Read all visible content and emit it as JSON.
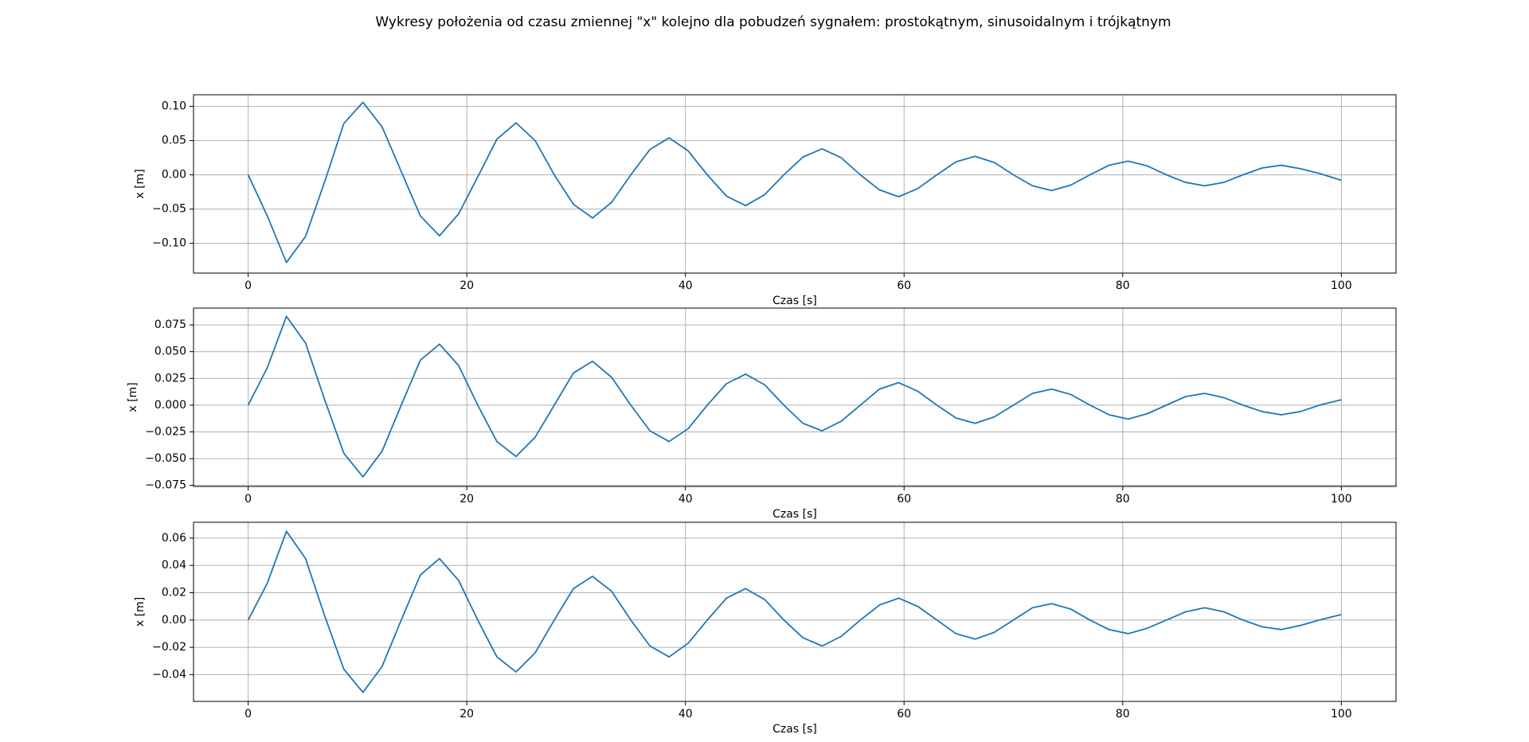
{
  "title": "Wykresy położenia od czasu zmiennej \"x\" kolejno dla pobudzeń sygnałem: prostokątnym, sinusoidalnym i trójkątnym",
  "chart_data": [
    {
      "type": "line",
      "xlabel": "Czas [s]",
      "ylabel": "x [m]",
      "grid": true,
      "xlim": [
        -5,
        105
      ],
      "ylim": [
        -0.1435,
        0.117
      ],
      "xticks": [
        0,
        20,
        40,
        60,
        80,
        100
      ],
      "yticks": [
        {
          "value": -0.1,
          "label": "−0.10"
        },
        {
          "value": -0.05,
          "label": "−0.05"
        },
        {
          "value": 0,
          "label": "0.00"
        },
        {
          "value": 0.05,
          "label": "0.05"
        },
        {
          "value": 0.1,
          "label": "0.10"
        }
      ],
      "x": [
        0,
        1.75,
        3.5,
        5.25,
        7,
        8.75,
        10.5,
        12.25,
        14,
        15.75,
        17.5,
        19.25,
        21,
        22.75,
        24.5,
        26.25,
        28,
        29.75,
        31.5,
        33.25,
        35,
        36.75,
        38.5,
        40.25,
        42,
        43.75,
        45.5,
        47.25,
        49,
        50.75,
        52.5,
        54.25,
        56,
        57.75,
        59.5,
        61.25,
        63,
        64.75,
        66.5,
        68.25,
        70,
        71.75,
        73.5,
        75.25,
        77,
        78.75,
        80.5,
        82.25,
        84,
        85.75,
        87.5,
        89.25,
        91,
        92.75,
        94.5,
        96.25,
        98,
        100
      ],
      "series": [
        {
          "color": "#1f77b4",
          "values": [
            0,
            -0.06,
            -0.128,
            -0.09,
            -0.01,
            0.075,
            0.106,
            0.07,
            0.005,
            -0.06,
            -0.089,
            -0.057,
            -0.003,
            0.052,
            0.076,
            0.05,
            0.0,
            -0.043,
            -0.063,
            -0.04,
            0.0,
            0.037,
            0.054,
            0.035,
            0.0,
            -0.031,
            -0.045,
            -0.029,
            0.0,
            0.026,
            0.038,
            0.025,
            0.0,
            -0.022,
            -0.032,
            -0.02,
            0.0,
            0.019,
            0.027,
            0.018,
            0.0,
            -0.016,
            -0.023,
            -0.015,
            0.0,
            0.014,
            0.02,
            0.013,
            0.0,
            -0.011,
            -0.016,
            -0.011,
            0.0,
            0.01,
            0.014,
            0.009,
            0.002,
            -0.008
          ]
        }
      ]
    },
    {
      "type": "line",
      "xlabel": "Czas [s]",
      "ylabel": "x [m]",
      "grid": true,
      "xlim": [
        -5,
        105
      ],
      "ylim": [
        -0.076,
        0.0907
      ],
      "xticks": [
        0,
        20,
        40,
        60,
        80,
        100
      ],
      "yticks": [
        {
          "value": -0.075,
          "label": "−0.075"
        },
        {
          "value": -0.05,
          "label": "−0.050"
        },
        {
          "value": -0.025,
          "label": "−0.025"
        },
        {
          "value": 0,
          "label": "0.000"
        },
        {
          "value": 0.025,
          "label": "0.025"
        },
        {
          "value": 0.05,
          "label": "0.050"
        },
        {
          "value": 0.075,
          "label": "0.075"
        }
      ],
      "x": [
        0,
        1.75,
        3.5,
        5.25,
        7,
        8.75,
        10.5,
        12.25,
        14,
        15.75,
        17.5,
        19.25,
        21,
        22.75,
        24.5,
        26.25,
        28,
        29.75,
        31.5,
        33.25,
        35,
        36.75,
        38.5,
        40.25,
        42,
        43.75,
        45.5,
        47.25,
        49,
        50.75,
        52.5,
        54.25,
        56,
        57.75,
        59.5,
        61.25,
        63,
        64.75,
        66.5,
        68.25,
        70,
        71.75,
        73.5,
        75.25,
        77,
        78.75,
        80.5,
        82.25,
        84,
        85.75,
        87.5,
        89.25,
        91,
        92.75,
        94.5,
        96.25,
        98,
        100
      ],
      "series": [
        {
          "color": "#1f77b4",
          "values": [
            0,
            0.035,
            0.083,
            0.058,
            0.005,
            -0.045,
            -0.067,
            -0.043,
            0.0,
            0.042,
            0.057,
            0.037,
            0.0,
            -0.034,
            -0.048,
            -0.03,
            0.0,
            0.03,
            0.041,
            0.026,
            0.0,
            -0.024,
            -0.034,
            -0.022,
            0.0,
            0.02,
            0.029,
            0.019,
            0.0,
            -0.017,
            -0.024,
            -0.015,
            0.0,
            0.015,
            0.021,
            0.013,
            0.0,
            -0.012,
            -0.017,
            -0.011,
            0.0,
            0.011,
            0.015,
            0.01,
            0.0,
            -0.009,
            -0.013,
            -0.008,
            0.0,
            0.008,
            0.011,
            0.007,
            0.0,
            -0.006,
            -0.009,
            -0.006,
            0.0,
            0.005
          ]
        }
      ]
    },
    {
      "type": "line",
      "xlabel": "Czas [s]",
      "ylabel": "x [m]",
      "grid": true,
      "xlim": [
        -5,
        105
      ],
      "ylim": [
        -0.0596,
        0.0716
      ],
      "xticks": [
        0,
        20,
        40,
        60,
        80,
        100
      ],
      "yticks": [
        {
          "value": -0.04,
          "label": "−0.04"
        },
        {
          "value": -0.02,
          "label": "−0.02"
        },
        {
          "value": 0,
          "label": "0.00"
        },
        {
          "value": 0.02,
          "label": "0.02"
        },
        {
          "value": 0.04,
          "label": "0.04"
        },
        {
          "value": 0.06,
          "label": "0.06"
        }
      ],
      "x": [
        0,
        1.75,
        3.5,
        5.25,
        7,
        8.75,
        10.5,
        12.25,
        14,
        15.75,
        17.5,
        19.25,
        21,
        22.75,
        24.5,
        26.25,
        28,
        29.75,
        31.5,
        33.25,
        35,
        36.75,
        38.5,
        40.25,
        42,
        43.75,
        45.5,
        47.25,
        49,
        50.75,
        52.5,
        54.25,
        56,
        57.75,
        59.5,
        61.25,
        63,
        64.75,
        66.5,
        68.25,
        70,
        71.75,
        73.5,
        75.25,
        77,
        78.75,
        80.5,
        82.25,
        84,
        85.75,
        87.5,
        89.25,
        91,
        92.75,
        94.5,
        96.25,
        98,
        100
      ],
      "series": [
        {
          "color": "#1f77b4",
          "values": [
            0,
            0.027,
            0.065,
            0.045,
            0.003,
            -0.036,
            -0.053,
            -0.034,
            0.0,
            0.033,
            0.045,
            0.029,
            0.0,
            -0.027,
            -0.038,
            -0.024,
            0.0,
            0.023,
            0.032,
            0.021,
            0.0,
            -0.019,
            -0.027,
            -0.017,
            0.0,
            0.016,
            0.023,
            0.015,
            0.0,
            -0.013,
            -0.019,
            -0.012,
            0.0,
            0.011,
            0.016,
            0.01,
            0.0,
            -0.01,
            -0.014,
            -0.009,
            0.0,
            0.009,
            0.012,
            0.008,
            0.0,
            -0.007,
            -0.01,
            -0.006,
            0.0,
            0.006,
            0.009,
            0.006,
            0.0,
            -0.005,
            -0.007,
            -0.004,
            0.0,
            0.004
          ]
        }
      ]
    }
  ]
}
